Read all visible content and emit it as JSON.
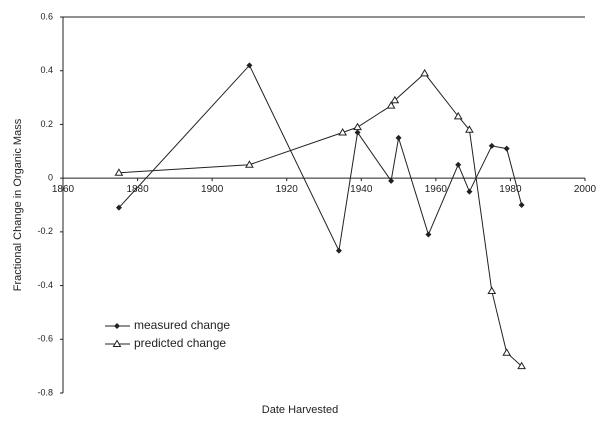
{
  "chart_data": {
    "type": "line",
    "x_label": "Date Harvested",
    "y_label": "Fractional Change in Organic Mass",
    "xlim": [
      1860,
      2000
    ],
    "xticks": [
      1860,
      1880,
      1900,
      1920,
      1940,
      1960,
      1980,
      2000
    ],
    "ylim": [
      -0.8,
      0.6
    ],
    "yticks": [
      0.6,
      0.4,
      0.2,
      0,
      -0.2,
      -0.4,
      -0.6,
      -0.8
    ],
    "legend": "lower left",
    "series": [
      {
        "name": "measured change",
        "color": "#222",
        "marker": "diamond",
        "x": [
          1875,
          1910,
          1934,
          1939,
          1948,
          1950,
          1958,
          1966,
          1969,
          1975,
          1979,
          1983
        ],
        "values": [
          -0.11,
          0.42,
          -0.27,
          0.17,
          -0.01,
          0.15,
          -0.21,
          0.05,
          -0.05,
          0.12,
          0.11,
          -0.1
        ]
      },
      {
        "name": "predicted change",
        "color": "#222",
        "marker": "triangle",
        "x": [
          1875,
          1910,
          1935,
          1939,
          1948,
          1949,
          1957,
          1966,
          1969,
          1975,
          1979,
          1983
        ],
        "values": [
          0.02,
          0.05,
          0.17,
          0.19,
          0.27,
          0.29,
          0.39,
          0.23,
          0.18,
          -0.42,
          -0.65,
          -0.7
        ]
      }
    ]
  }
}
